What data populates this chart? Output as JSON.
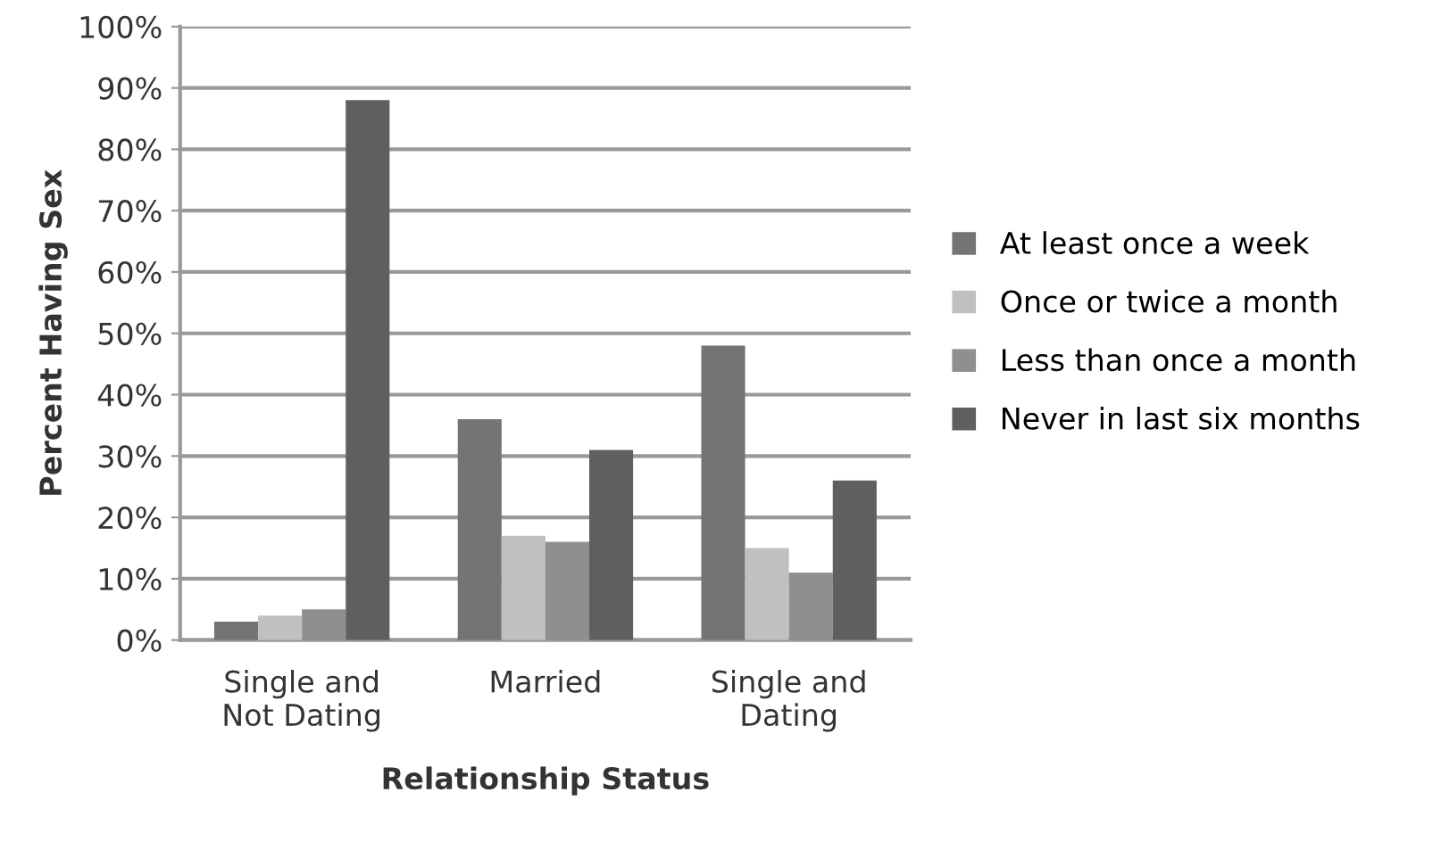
{
  "chart_data": {
    "type": "bar",
    "xlabel": "Relationship Status",
    "ylabel": "Percent Having Sex",
    "categories": [
      "Single and\nNot Dating",
      "Married",
      "Single and\nDating"
    ],
    "series": [
      {
        "name": "At least once a week",
        "color": "#747474",
        "values": [
          3,
          36,
          48
        ]
      },
      {
        "name": "Once or twice a month",
        "color": "#c0c0c0",
        "values": [
          4,
          17,
          15
        ]
      },
      {
        "name": "Less than once a month",
        "color": "#8f8f8f",
        "values": [
          5,
          16,
          11
        ]
      },
      {
        "name": "Never in last six months",
        "color": "#5f5f5f",
        "values": [
          88,
          31,
          26
        ]
      }
    ],
    "ylim": [
      0,
      100
    ],
    "yticks": [
      {
        "value": 0,
        "label": "0%"
      },
      {
        "value": 10,
        "label": "10%"
      },
      {
        "value": 20,
        "label": "20%"
      },
      {
        "value": 30,
        "label": "30%"
      },
      {
        "value": 40,
        "label": "40%"
      },
      {
        "value": 50,
        "label": "50%"
      },
      {
        "value": 60,
        "label": "60%"
      },
      {
        "value": 70,
        "label": "70%"
      },
      {
        "value": 80,
        "label": "80%"
      },
      {
        "value": 90,
        "label": "90%"
      },
      {
        "value": 100,
        "label": "100%"
      }
    ],
    "grid": "y",
    "legend": "right"
  }
}
